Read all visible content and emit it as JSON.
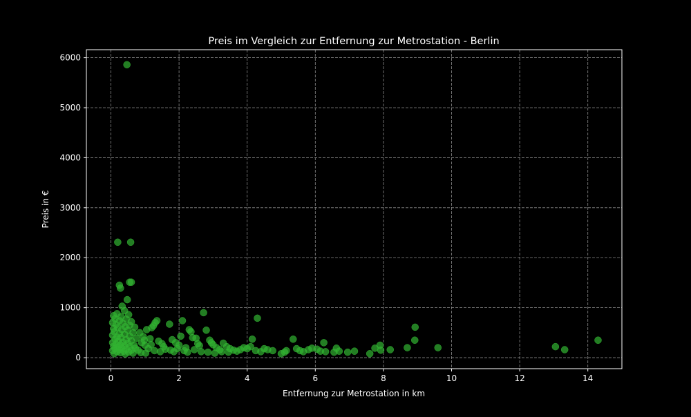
{
  "chart_data": {
    "type": "scatter",
    "title": "Preis im Vergleich zur Entfernung zur Metrostation - Berlin",
    "xlabel": "Entfernung zur Metrostation in km",
    "ylabel": "Preis in €",
    "xlim": [
      -0.72,
      15.0
    ],
    "ylim": [
      -220,
      6160
    ],
    "x_ticks": [
      0,
      2,
      4,
      6,
      8,
      10,
      12,
      14
    ],
    "y_ticks": [
      0,
      1000,
      2000,
      3000,
      4000,
      5000,
      6000
    ],
    "grid": true,
    "grid_style": "dashed",
    "colors": {
      "background": "#000000",
      "point": "#32b432",
      "text": "#ffffff",
      "grid": "#8c8c8c"
    },
    "points": [
      [
        0.47,
        5860
      ],
      [
        0.2,
        2310
      ],
      [
        0.58,
        2310
      ],
      [
        0.25,
        1450
      ],
      [
        0.28,
        1390
      ],
      [
        0.55,
        1510
      ],
      [
        0.6,
        1510
      ],
      [
        0.48,
        1160
      ],
      [
        0.33,
        1030
      ],
      [
        2.72,
        900
      ],
      [
        4.3,
        790
      ],
      [
        0.4,
        940
      ],
      [
        0.18,
        880
      ],
      [
        0.52,
        860
      ],
      [
        0.08,
        840
      ],
      [
        0.3,
        820
      ],
      [
        0.12,
        780
      ],
      [
        0.45,
        770
      ],
      [
        0.25,
        740
      ],
      [
        0.6,
        720
      ],
      [
        0.05,
        700
      ],
      [
        0.35,
        690
      ],
      [
        0.15,
        660
      ],
      [
        0.55,
        650
      ],
      [
        0.42,
        620
      ],
      [
        0.2,
        600
      ],
      [
        0.7,
        610
      ],
      [
        0.08,
        580
      ],
      [
        0.32,
        560
      ],
      [
        0.5,
        550
      ],
      [
        0.1,
        520
      ],
      [
        0.65,
        500
      ],
      [
        0.25,
        480
      ],
      [
        0.4,
        470
      ],
      [
        0.05,
        450
      ],
      [
        0.55,
        430
      ],
      [
        0.18,
        410
      ],
      [
        0.3,
        400
      ],
      [
        0.75,
        390
      ],
      [
        0.12,
        370
      ],
      [
        0.45,
        360
      ],
      [
        0.6,
        340
      ],
      [
        0.22,
        330
      ],
      [
        0.35,
        310
      ],
      [
        0.05,
        300
      ],
      [
        0.5,
        290
      ],
      [
        0.15,
        270
      ],
      [
        0.28,
        260
      ],
      [
        0.68,
        250
      ],
      [
        0.4,
        240
      ],
      [
        0.08,
        230
      ],
      [
        0.55,
        220
      ],
      [
        0.2,
        210
      ],
      [
        0.32,
        200
      ],
      [
        0.72,
        190
      ],
      [
        0.12,
        180
      ],
      [
        0.45,
        170
      ],
      [
        0.25,
        160
      ],
      [
        0.6,
        150
      ],
      [
        0.05,
        140
      ],
      [
        0.38,
        130
      ],
      [
        0.18,
        120
      ],
      [
        0.52,
        110
      ],
      [
        0.28,
        100
      ],
      [
        0.65,
        90
      ],
      [
        0.1,
        80
      ],
      [
        0.42,
        75
      ],
      [
        0.85,
        500
      ],
      [
        0.95,
        420
      ],
      [
        1.05,
        560
      ],
      [
        1.15,
        380
      ],
      [
        1.25,
        640
      ],
      [
        1.3,
        700
      ],
      [
        1.35,
        740
      ],
      [
        1.2,
        600
      ],
      [
        0.9,
        300
      ],
      [
        1.0,
        250
      ],
      [
        1.1,
        180
      ],
      [
        0.8,
        150
      ],
      [
        1.4,
        330
      ],
      [
        1.5,
        280
      ],
      [
        1.55,
        220
      ],
      [
        1.6,
        170
      ],
      [
        1.45,
        120
      ],
      [
        0.88,
        100
      ],
      [
        1.02,
        90
      ],
      [
        1.28,
        140
      ],
      [
        1.18,
        260
      ],
      [
        0.98,
        350
      ],
      [
        1.72,
        670
      ],
      [
        1.8,
        360
      ],
      [
        1.9,
        300
      ],
      [
        2.0,
        250
      ],
      [
        2.05,
        430
      ],
      [
        2.1,
        740
      ],
      [
        2.2,
        200
      ],
      [
        2.3,
        560
      ],
      [
        2.35,
        520
      ],
      [
        2.4,
        400
      ],
      [
        2.5,
        390
      ],
      [
        2.55,
        280
      ],
      [
        2.6,
        240
      ],
      [
        1.75,
        150
      ],
      [
        1.85,
        120
      ],
      [
        1.95,
        180
      ],
      [
        2.15,
        140
      ],
      [
        2.25,
        110
      ],
      [
        2.45,
        160
      ],
      [
        2.65,
        120
      ],
      [
        2.8,
        550
      ],
      [
        2.9,
        350
      ],
      [
        2.95,
        300
      ],
      [
        3.0,
        260
      ],
      [
        3.1,
        200
      ],
      [
        3.2,
        160
      ],
      [
        3.3,
        290
      ],
      [
        3.4,
        220
      ],
      [
        3.5,
        180
      ],
      [
        3.6,
        150
      ],
      [
        3.7,
        130
      ],
      [
        3.8,
        160
      ],
      [
        3.9,
        200
      ],
      [
        4.0,
        180
      ],
      [
        2.85,
        110
      ],
      [
        3.05,
        90
      ],
      [
        3.25,
        120
      ],
      [
        3.45,
        110
      ],
      [
        4.15,
        370
      ],
      [
        4.1,
        220
      ],
      [
        4.25,
        140
      ],
      [
        4.4,
        120
      ],
      [
        4.5,
        180
      ],
      [
        4.6,
        160
      ],
      [
        4.75,
        140
      ],
      [
        5.0,
        80
      ],
      [
        5.1,
        110
      ],
      [
        5.15,
        140
      ],
      [
        5.35,
        370
      ],
      [
        5.45,
        180
      ],
      [
        5.55,
        140
      ],
      [
        5.65,
        120
      ],
      [
        5.8,
        160
      ],
      [
        5.9,
        190
      ],
      [
        6.05,
        170
      ],
      [
        6.15,
        130
      ],
      [
        6.25,
        300
      ],
      [
        6.3,
        120
      ],
      [
        6.55,
        110
      ],
      [
        6.62,
        190
      ],
      [
        6.7,
        130
      ],
      [
        6.95,
        110
      ],
      [
        7.15,
        130
      ],
      [
        7.6,
        80
      ],
      [
        7.75,
        190
      ],
      [
        7.9,
        250
      ],
      [
        7.92,
        150
      ],
      [
        8.2,
        160
      ],
      [
        8.7,
        200
      ],
      [
        8.92,
        350
      ],
      [
        8.93,
        610
      ],
      [
        9.6,
        200
      ],
      [
        13.05,
        220
      ],
      [
        13.32,
        160
      ],
      [
        14.3,
        350
      ]
    ]
  }
}
